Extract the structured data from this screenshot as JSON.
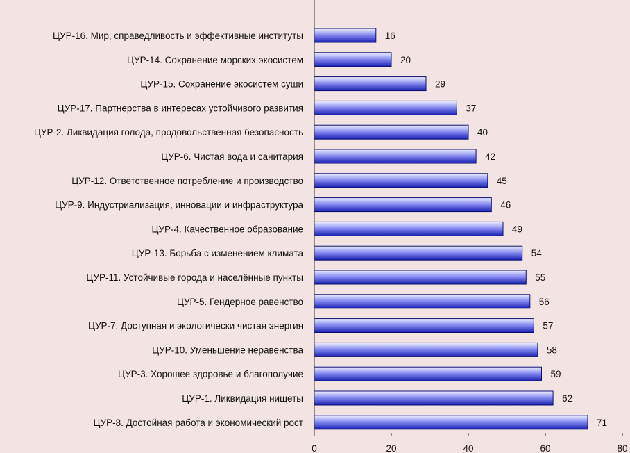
{
  "chart_data": {
    "type": "bar",
    "orientation": "horizontal",
    "categories": [
      "ЦУР-16. Мир, справедливость и эффективные институты",
      "ЦУР-14. Сохранение морских экосистем",
      "ЦУР-15. Сохранение экосистем суши",
      "ЦУР-17. Партнерства в интересах устойчивого развития",
      "ЦУР-2. Ликвидация голода, продовольственная безопасность",
      "ЦУР-6. Чистая вода и санитария",
      "ЦУР-12. Ответственное потребление и производство",
      "ЦУР-9. Индустриализация, инновации и инфраструктура",
      "ЦУР-4. Качественное образование",
      "ЦУР-13. Борьба с изменением климата",
      "ЦУР-11. Устойчивые города и населённые пункты",
      "ЦУР-5. Гендерное равенство",
      "ЦУР-7. Доступная и экологически чистая энергия",
      "ЦУР-10. Уменьшение неравенства",
      "ЦУР-3. Хорошее здоровье и благополучие",
      "ЦУР-1. Ликвидация нищеты",
      "ЦУР-8. Достойная работа и экономический рост"
    ],
    "values": [
      16,
      20,
      29,
      37,
      40,
      42,
      45,
      46,
      49,
      54,
      55,
      56,
      57,
      58,
      59,
      62,
      71
    ],
    "xlim": [
      0,
      80
    ],
    "xticks": [
      0,
      20,
      40,
      60,
      80
    ],
    "grid": false,
    "legend": "none",
    "title": "",
    "xlabel": "",
    "ylabel": "",
    "colors": {
      "bar_light": "#eef0ff",
      "bar_mid": "#7b7ff0",
      "bar_dark": "#1a1fb0",
      "bar_stroke": "#0c0f6e",
      "axis": "#333333",
      "background": "#f3e4e4"
    }
  }
}
